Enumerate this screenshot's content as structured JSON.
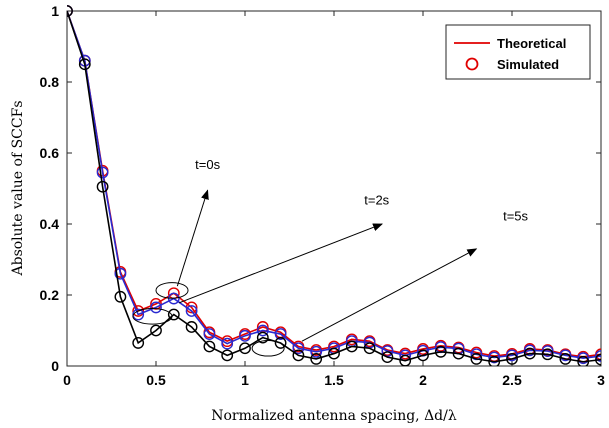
{
  "chart_data": {
    "type": "line",
    "xlabel": "Normalized antenna spacing, Δd/λ",
    "ylabel": "Absolute value of SCCFs",
    "xlim": [
      0,
      3
    ],
    "ylim": [
      0,
      1
    ],
    "xticks": [
      "0",
      "0.5",
      "1",
      "1.5",
      "2",
      "2.5",
      "3"
    ],
    "yticks": [
      "0",
      "0.2",
      "0.4",
      "0.6",
      "0.8",
      "1"
    ],
    "legend": {
      "position": "top-right",
      "entries": [
        {
          "label": "Theoretical",
          "style": "line",
          "color": "#e00000"
        },
        {
          "label": "Simulated",
          "style": "circle",
          "color": "#e00000"
        }
      ]
    },
    "x": [
      0,
      0.1,
      0.2,
      0.3,
      0.4,
      0.5,
      0.6,
      0.7,
      0.8,
      0.9,
      1.0,
      1.1,
      1.2,
      1.3,
      1.4,
      1.5,
      1.6,
      1.7,
      1.8,
      1.9,
      2.0,
      2.1,
      2.2,
      2.3,
      2.4,
      2.5,
      2.6,
      2.7,
      2.8,
      2.9,
      3.0
    ],
    "series": [
      {
        "group": "t=0s",
        "line_color": "#e00000",
        "marker_color": "#e00000",
        "values": [
          1.0,
          0.86,
          0.55,
          0.265,
          0.155,
          0.175,
          0.205,
          0.165,
          0.095,
          0.07,
          0.09,
          0.11,
          0.095,
          0.055,
          0.045,
          0.055,
          0.075,
          0.07,
          0.045,
          0.035,
          0.048,
          0.057,
          0.052,
          0.038,
          0.028,
          0.034,
          0.048,
          0.045,
          0.033,
          0.026,
          0.033
        ]
      },
      {
        "group": "t=2s",
        "line_color": "#2a2ad0",
        "marker_color": "#2a2ad0",
        "values": [
          1.0,
          0.86,
          0.545,
          0.26,
          0.145,
          0.165,
          0.19,
          0.155,
          0.09,
          0.063,
          0.085,
          0.1,
          0.09,
          0.05,
          0.04,
          0.05,
          0.07,
          0.066,
          0.042,
          0.03,
          0.043,
          0.053,
          0.049,
          0.033,
          0.024,
          0.03,
          0.044,
          0.042,
          0.03,
          0.022,
          0.028
        ]
      },
      {
        "group": "t=5s",
        "line_color": "#000000",
        "marker_color": "#000000",
        "values": [
          1.0,
          0.85,
          0.505,
          0.195,
          0.065,
          0.1,
          0.145,
          0.11,
          0.055,
          0.03,
          0.05,
          0.08,
          0.065,
          0.03,
          0.02,
          0.035,
          0.055,
          0.05,
          0.025,
          0.015,
          0.03,
          0.04,
          0.035,
          0.02,
          0.012,
          0.02,
          0.035,
          0.033,
          0.02,
          0.012,
          0.018
        ]
      }
    ],
    "annotations": [
      {
        "text": "t=0s",
        "label_at": [
          0.79,
          0.555
        ],
        "arrow_from": [
          0.62,
          0.225
        ],
        "arrow_to": [
          0.79,
          0.495
        ],
        "ellipse_center": [
          0.59,
          0.213
        ],
        "ellipse_r": [
          0.09,
          0.022
        ]
      },
      {
        "text": "t=2s",
        "label_at": [
          1.74,
          0.455
        ],
        "arrow_from": [
          0.63,
          0.178
        ],
        "arrow_to": [
          1.77,
          0.4
        ],
        "ellipse_center": [
          0.48,
          0.14
        ],
        "ellipse_r": [
          0.11,
          0.022
        ]
      },
      {
        "text": "t=5s",
        "label_at": [
          2.52,
          0.41
        ],
        "arrow_from": [
          1.32,
          0.07
        ],
        "arrow_to": [
          2.3,
          0.33
        ],
        "ellipse_center": [
          1.13,
          0.05
        ],
        "ellipse_r": [
          0.09,
          0.022
        ]
      }
    ]
  }
}
